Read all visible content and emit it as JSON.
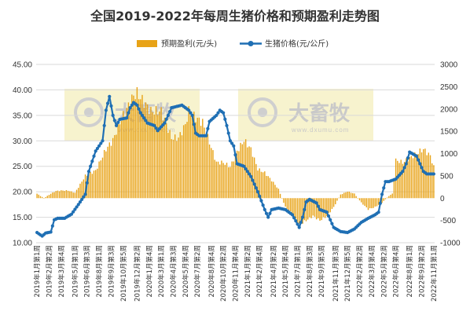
{
  "chart_data": {
    "type": "bar+line",
    "title": "全国2019-2022年每周生猪价格和预期盈利走势图",
    "legend": {
      "placement": "top"
    },
    "grid": true,
    "left_axis": {
      "ylim": [
        10,
        45
      ],
      "ticks": [
        "10.00",
        "15.00",
        "20.00",
        "25.00",
        "30.00",
        "35.00",
        "40.00",
        "45.00"
      ]
    },
    "right_axis": {
      "ylim": [
        -1000,
        3000
      ],
      "ticks": [
        "-1000",
        "-500",
        "0",
        "500",
        "1000",
        "1500",
        "2000",
        "2500",
        "3000"
      ]
    },
    "x_labels": [
      "2019年1月第1周",
      "2019年2月第2周",
      "2019年3月第4周",
      "2019年5月第1周",
      "2019年6月第3周",
      "2019年8月第1周",
      "2019年9月第3周",
      "2019年10月第5周",
      "2019年12月第2周",
      "2020年1月第4周",
      "2020年3月第1周",
      "2020年4月第3周",
      "2020年5月第4周",
      "2020年7月第2周",
      "2020年8月第4周",
      "2020年10月第2周",
      "2020年11月第4周",
      "2021年1月第2周",
      "2021年2月第4周",
      "2021年4月第2周",
      "2021年5月第4周",
      "2021年7月第1周",
      "2021年8月第3周",
      "2021年9月第5周",
      "2021年11月第3周",
      "2021年12月第5周",
      "2022年2月第2周",
      "2022年3月第4周",
      "2022年5月第2周",
      "2022年6月第4周",
      "2022年8月第1周",
      "2022年9月第2周",
      "2022年11月第1周"
    ],
    "series": [
      {
        "name": "预期盈利(元/头)",
        "type": "bar",
        "axis": "right",
        "color": "#e8a317",
        "anchors": [
          [
            0,
            100
          ],
          [
            4,
            0
          ],
          [
            8,
            100
          ],
          [
            11,
            160
          ],
          [
            14,
            170
          ],
          [
            18,
            170
          ],
          [
            22,
            120
          ],
          [
            28,
            500
          ],
          [
            34,
            620
          ],
          [
            40,
            1100
          ],
          [
            44,
            1300
          ],
          [
            48,
            1700
          ],
          [
            52,
            2000
          ],
          [
            56,
            2300
          ],
          [
            58,
            2350
          ],
          [
            62,
            2150
          ],
          [
            66,
            1950
          ],
          [
            72,
            1950
          ],
          [
            78,
            1350
          ],
          [
            82,
            1350
          ],
          [
            86,
            1650
          ],
          [
            88,
            1950
          ],
          [
            92,
            1800
          ],
          [
            96,
            1700
          ],
          [
            100,
            1250
          ],
          [
            104,
            800
          ],
          [
            108,
            800
          ],
          [
            112,
            700
          ],
          [
            116,
            1050
          ],
          [
            120,
            1300
          ],
          [
            124,
            1100
          ],
          [
            128,
            650
          ],
          [
            132,
            570
          ],
          [
            136,
            400
          ],
          [
            140,
            200
          ],
          [
            144,
            -200
          ],
          [
            148,
            -350
          ],
          [
            152,
            -600
          ],
          [
            156,
            -500
          ],
          [
            160,
            -400
          ],
          [
            164,
            -500
          ],
          [
            168,
            -400
          ],
          [
            172,
            -200
          ],
          [
            176,
            80
          ],
          [
            180,
            150
          ],
          [
            184,
            100
          ],
          [
            188,
            -100
          ],
          [
            192,
            -250
          ],
          [
            196,
            -200
          ],
          [
            200,
            -100
          ],
          [
            204,
            50
          ],
          [
            206,
            100
          ],
          [
            208,
            850
          ],
          [
            212,
            800
          ],
          [
            216,
            900
          ],
          [
            220,
            1000
          ],
          [
            224,
            1100
          ],
          [
            228,
            950
          ],
          [
            230,
            700
          ]
        ]
      },
      {
        "name": "生猪价格(元/公斤)",
        "type": "line",
        "axis": "left",
        "color": "#1f6fb4",
        "anchors": [
          [
            0,
            12.0
          ],
          [
            3,
            11.3
          ],
          [
            5,
            11.9
          ],
          [
            8,
            12.1
          ],
          [
            10,
            14.5
          ],
          [
            12,
            14.8
          ],
          [
            16,
            14.8
          ],
          [
            20,
            15.6
          ],
          [
            24,
            17.5
          ],
          [
            28,
            19.5
          ],
          [
            30,
            24.0
          ],
          [
            34,
            28.0
          ],
          [
            38,
            30.0
          ],
          [
            40,
            36.0
          ],
          [
            42,
            38.7
          ],
          [
            44,
            35.0
          ],
          [
            46,
            33.0
          ],
          [
            48,
            34.2
          ],
          [
            52,
            34.5
          ],
          [
            54,
            36.5
          ],
          [
            56,
            37.5
          ],
          [
            58,
            37.0
          ],
          [
            60,
            35.5
          ],
          [
            64,
            33.5
          ],
          [
            68,
            33.0
          ],
          [
            70,
            32.0
          ],
          [
            74,
            33.5
          ],
          [
            78,
            36.5
          ],
          [
            84,
            37.0
          ],
          [
            88,
            36.0
          ],
          [
            90,
            35.0
          ],
          [
            92,
            31.5
          ],
          [
            94,
            31.0
          ],
          [
            98,
            31.0
          ],
          [
            100,
            33.8
          ],
          [
            104,
            35.0
          ],
          [
            106,
            36.0
          ],
          [
            108,
            35.5
          ],
          [
            110,
            33.0
          ],
          [
            112,
            30.0
          ],
          [
            114,
            29.0
          ],
          [
            116,
            25.5
          ],
          [
            120,
            25.0
          ],
          [
            124,
            23.0
          ],
          [
            128,
            20.0
          ],
          [
            132,
            16.5
          ],
          [
            134,
            15.0
          ],
          [
            136,
            16.5
          ],
          [
            140,
            16.8
          ],
          [
            144,
            16.5
          ],
          [
            148,
            15.5
          ],
          [
            150,
            14.3
          ],
          [
            152,
            13.0
          ],
          [
            154,
            15.0
          ],
          [
            156,
            18.0
          ],
          [
            158,
            18.5
          ],
          [
            162,
            17.8
          ],
          [
            164,
            16.5
          ],
          [
            168,
            16.0
          ],
          [
            172,
            13.0
          ],
          [
            176,
            12.2
          ],
          [
            180,
            12.0
          ],
          [
            184,
            12.7
          ],
          [
            188,
            14.0
          ],
          [
            192,
            14.8
          ],
          [
            196,
            15.5
          ],
          [
            198,
            16.0
          ],
          [
            200,
            19.5
          ],
          [
            202,
            22.0
          ],
          [
            204,
            22.0
          ],
          [
            208,
            22.5
          ],
          [
            212,
            24.0
          ],
          [
            214,
            25.5
          ],
          [
            216,
            27.8
          ],
          [
            220,
            27.0
          ],
          [
            222,
            25.5
          ],
          [
            224,
            24.0
          ],
          [
            226,
            23.5
          ]
        ]
      }
    ],
    "watermark": {
      "brand": "大畜牧",
      "url": "www.dxumu.com"
    }
  }
}
